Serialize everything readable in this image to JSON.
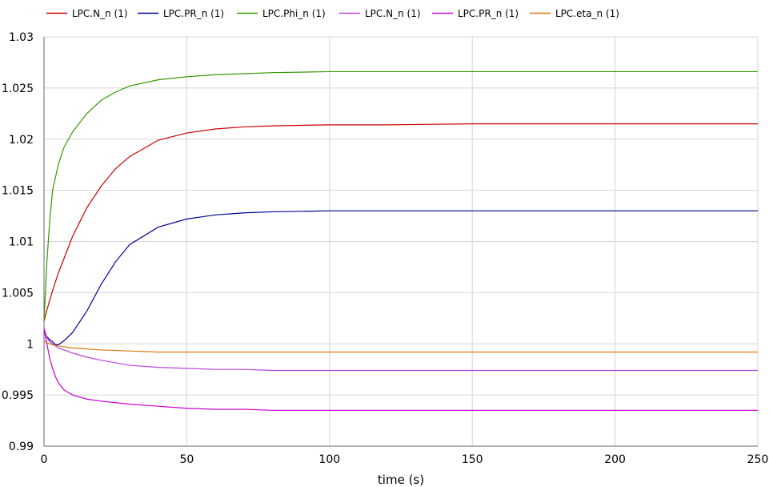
{
  "chart_data": {
    "type": "line",
    "title": "",
    "xlabel": "time (s)",
    "ylabel": "",
    "xlim": [
      0,
      250
    ],
    "ylim": [
      0.99,
      1.03
    ],
    "x_ticks": [
      0,
      50,
      100,
      150,
      200,
      250
    ],
    "x_tick_labels": [
      "0",
      "50",
      "100",
      "150",
      "200",
      "250"
    ],
    "y_ticks": [
      0.99,
      0.995,
      1.0,
      1.005,
      1.01,
      1.015,
      1.02,
      1.025,
      1.03
    ],
    "y_tick_labels": [
      "0.99",
      "0.995",
      "1",
      "1.005",
      "1.01",
      "1.015",
      "1.02",
      "1.025",
      "1.03"
    ],
    "grid": true,
    "legend_position": "top",
    "series": [
      {
        "name": "LPC.N_n (1)",
        "color": "#cc0000",
        "x": [
          0,
          1,
          3,
          5,
          10,
          15,
          20,
          25,
          30,
          40,
          50,
          60,
          70,
          80,
          100,
          120,
          150,
          200,
          250
        ],
        "y": [
          1.0022,
          1.0033,
          1.0052,
          1.0069,
          1.0105,
          1.0133,
          1.0154,
          1.0171,
          1.0183,
          1.0199,
          1.0206,
          1.021,
          1.0212,
          1.0213,
          1.0214,
          1.0214,
          1.0215,
          1.0215,
          1.0215
        ]
      },
      {
        "name": "LPC.PR_n (1)",
        "color": "#000099",
        "x": [
          0,
          1,
          2,
          3,
          4,
          5,
          7,
          10,
          15,
          20,
          25,
          30,
          40,
          50,
          60,
          70,
          80,
          100,
          150,
          200,
          250
        ],
        "y": [
          1.0012,
          1.0007,
          1.0004,
          1.0002,
          0.9999,
          0.9999,
          1.0003,
          1.0011,
          1.0032,
          1.0058,
          1.008,
          1.0097,
          1.0114,
          1.0122,
          1.0126,
          1.0128,
          1.0129,
          1.013,
          1.013,
          1.013,
          1.013
        ]
      },
      {
        "name": "LPC.Phi_n (1)",
        "color": "#339900",
        "x": [
          0,
          1,
          2,
          3,
          5,
          7,
          10,
          15,
          20,
          25,
          30,
          40,
          50,
          60,
          70,
          80,
          100,
          150,
          200,
          250
        ],
        "y": [
          1.0022,
          1.008,
          1.012,
          1.015,
          1.0175,
          1.0192,
          1.0207,
          1.0225,
          1.0238,
          1.0246,
          1.0252,
          1.0258,
          1.0261,
          1.0263,
          1.0264,
          1.0265,
          1.0266,
          1.0266,
          1.0266,
          1.0266
        ]
      },
      {
        "name": "LPC.N_n (1)",
        "color": "#bb44dd",
        "x": [
          0,
          1,
          2,
          3,
          5,
          10,
          15,
          20,
          30,
          40,
          50,
          60,
          70,
          80,
          100,
          150,
          200,
          250
        ],
        "y": [
          1.0016,
          1.0006,
          1.0002,
          1.0,
          0.9996,
          0.9991,
          0.9987,
          0.9984,
          0.9979,
          0.9977,
          0.9976,
          0.9975,
          0.9975,
          0.9974,
          0.9974,
          0.9974,
          0.9974,
          0.9974
        ]
      },
      {
        "name": "LPC.PR_n (1)",
        "color": "#cc00cc",
        "x": [
          0,
          1,
          2,
          3,
          4,
          5,
          7,
          10,
          15,
          20,
          30,
          40,
          50,
          60,
          70,
          80,
          100,
          150,
          200,
          250
        ],
        "y": [
          1.0014,
          1.0,
          0.9986,
          0.9976,
          0.9968,
          0.9962,
          0.9955,
          0.995,
          0.9946,
          0.9944,
          0.9941,
          0.9939,
          0.9937,
          0.9936,
          0.9936,
          0.9935,
          0.9935,
          0.9935,
          0.9935,
          0.9935
        ]
      },
      {
        "name": "LPC.eta_n (1)",
        "color": "#dd7711",
        "x": [
          0,
          1,
          3,
          5,
          10,
          15,
          20,
          30,
          40,
          50,
          60,
          70,
          80,
          100,
          150,
          200,
          250
        ],
        "y": [
          1.0003,
          1.0001,
          0.9999,
          0.9998,
          0.9996,
          0.9995,
          0.9994,
          0.9993,
          0.9992,
          0.9992,
          0.9992,
          0.9992,
          0.9992,
          0.9992,
          0.9992,
          0.9992,
          0.9992
        ]
      }
    ]
  }
}
